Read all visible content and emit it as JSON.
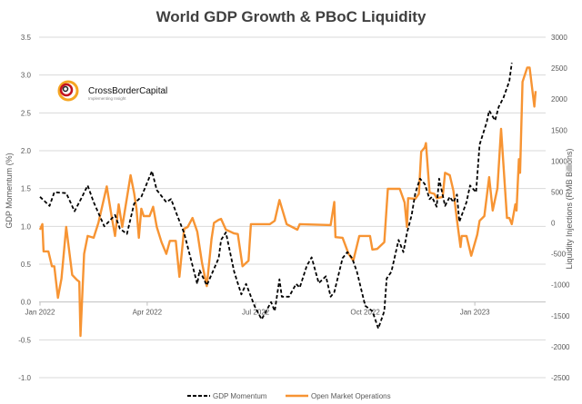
{
  "chart_data": {
    "type": "line",
    "title": "World GDP Growth & PBoC Liquidity",
    "ylabel": "GDP Momentum (%)",
    "y2label": "Liquidity Injections (RMB Billions)",
    "ylim": [
      -1.0,
      3.5
    ],
    "y2lim": [
      -2500,
      3000
    ],
    "yticks": [
      "3.5",
      "3.0",
      "2.5",
      "2.0",
      "1.5",
      "1.0",
      "0.5",
      "0.0",
      "-0.5",
      "-1.0"
    ],
    "y2ticks": [
      "3000",
      "2500",
      "2000",
      "1500",
      "1000",
      "500",
      "0",
      "-500",
      "-1000",
      "-1500",
      "-2000",
      "-2500"
    ],
    "xticks": [
      {
        "date": "2022-01-01",
        "label": "Jan 2022"
      },
      {
        "date": "2022-04-01",
        "label": "Apr 2022"
      },
      {
        "date": "2022-07-01",
        "label": "Jul 2022"
      },
      {
        "date": "2022-10-01",
        "label": "Oct 2022"
      },
      {
        "date": "2023-01-01",
        "label": "Jan 2023"
      }
    ],
    "grid": true,
    "legend": "bottom",
    "logo": {
      "name": "CrossBorderCapital",
      "tagline": "Implementing Insight"
    },
    "series": [
      {
        "name": "GDP Momentum",
        "axis": "left",
        "color": "#000000",
        "style": "dashed",
        "x": [
          "2022-01-01",
          "2022-01-09",
          "2022-01-13",
          "2022-01-23",
          "2022-01-30",
          "2022-02-05",
          "2022-02-10",
          "2022-02-15",
          "2022-02-24",
          "2022-03-05",
          "2022-03-09",
          "2022-03-15",
          "2022-03-21",
          "2022-03-27",
          "2022-04-05",
          "2022-04-09",
          "2022-04-17",
          "2022-04-21",
          "2022-04-26",
          "2022-05-02",
          "2022-05-13",
          "2022-05-15",
          "2022-05-21",
          "2022-05-31",
          "2022-06-02",
          "2022-06-06",
          "2022-06-13",
          "2022-06-19",
          "2022-06-23",
          "2022-06-30",
          "2022-07-06",
          "2022-07-14",
          "2022-07-17",
          "2022-07-21",
          "2022-07-23",
          "2022-07-29",
          "2022-08-04",
          "2022-08-07",
          "2022-08-13",
          "2022-08-17",
          "2022-08-23",
          "2022-08-29",
          "2022-09-02",
          "2022-09-05",
          "2022-09-12",
          "2022-09-16",
          "2022-09-20",
          "2022-09-24",
          "2022-10-01",
          "2022-10-07",
          "2022-10-12",
          "2022-10-17",
          "2022-10-19",
          "2022-10-23",
          "2022-10-29",
          "2022-11-02",
          "2022-11-05",
          "2022-11-09",
          "2022-11-12",
          "2022-11-16",
          "2022-11-20",
          "2022-11-24",
          "2022-11-26",
          "2022-11-30",
          "2022-12-02",
          "2022-12-07",
          "2022-12-11",
          "2022-12-14",
          "2022-12-17",
          "2022-12-19",
          "2022-12-25",
          "2022-12-28",
          "2023-01-02",
          "2023-01-05",
          "2023-01-11",
          "2023-01-13",
          "2023-01-18",
          "2023-01-21",
          "2023-01-25",
          "2023-01-30",
          "2023-02-01"
        ],
        "values": [
          1.39,
          1.27,
          1.45,
          1.44,
          1.2,
          1.38,
          1.54,
          1.32,
          1.0,
          1.15,
          0.97,
          0.9,
          1.3,
          1.39,
          1.73,
          1.48,
          1.32,
          1.36,
          1.15,
          0.91,
          0.24,
          0.42,
          0.22,
          0.58,
          0.82,
          0.92,
          0.4,
          0.1,
          0.24,
          -0.05,
          -0.23,
          0.0,
          -0.12,
          0.3,
          0.07,
          0.07,
          0.24,
          0.19,
          0.48,
          0.59,
          0.25,
          0.34,
          0.07,
          0.13,
          0.58,
          0.66,
          0.58,
          0.4,
          -0.05,
          -0.12,
          -0.35,
          -0.12,
          0.31,
          0.4,
          0.82,
          0.66,
          0.91,
          1.15,
          1.44,
          1.63,
          1.56,
          1.36,
          1.39,
          1.26,
          1.63,
          1.27,
          1.39,
          1.32,
          1.42,
          1.06,
          1.32,
          1.54,
          1.45,
          2.08,
          2.38,
          2.53,
          2.4,
          2.58,
          2.7,
          2.92,
          3.16
        ]
      },
      {
        "name": "Open Market Operations",
        "axis": "right",
        "color": "#f79433",
        "style": "solid",
        "x": [
          "2022-01-01",
          "2022-01-03",
          "2022-01-04",
          "2022-01-08",
          "2022-01-11",
          "2022-01-13",
          "2022-01-16",
          "2022-01-19",
          "2022-01-23",
          "2022-01-28",
          "2022-02-01",
          "2022-02-03",
          "2022-02-04",
          "2022-02-07",
          "2022-02-10",
          "2022-02-15",
          "2022-02-19",
          "2022-02-26",
          "2022-03-02",
          "2022-03-05",
          "2022-03-08",
          "2022-03-11",
          "2022-03-18",
          "2022-03-21",
          "2022-03-23",
          "2022-03-25",
          "2022-03-27",
          "2022-03-29",
          "2022-04-03",
          "2022-04-06",
          "2022-04-09",
          "2022-04-13",
          "2022-04-17",
          "2022-04-20",
          "2022-04-25",
          "2022-04-28",
          "2022-05-02",
          "2022-05-05",
          "2022-05-09",
          "2022-05-13",
          "2022-05-17",
          "2022-05-21",
          "2022-05-25",
          "2022-05-27",
          "2022-05-31",
          "2022-06-02",
          "2022-06-06",
          "2022-06-13",
          "2022-06-16",
          "2022-06-20",
          "2022-06-25",
          "2022-06-27",
          "2022-07-13",
          "2022-07-17",
          "2022-07-21",
          "2022-07-27",
          "2022-08-05",
          "2022-08-07",
          "2022-09-02",
          "2022-09-05",
          "2022-09-06",
          "2022-09-12",
          "2022-09-17",
          "2022-09-21",
          "2022-09-26",
          "2022-10-05",
          "2022-10-07",
          "2022-10-11",
          "2022-10-17",
          "2022-10-20",
          "2022-10-30",
          "2022-11-03",
          "2022-11-05",
          "2022-11-06",
          "2022-11-12",
          "2022-11-15",
          "2022-11-17",
          "2022-11-20",
          "2022-11-21",
          "2022-11-24",
          "2022-11-28",
          "2022-11-30",
          "2022-12-05",
          "2022-12-07",
          "2022-12-11",
          "2022-12-14",
          "2022-12-17",
          "2022-12-20",
          "2022-12-21",
          "2022-12-25",
          "2022-12-29",
          "2023-01-03",
          "2023-01-05",
          "2023-01-09",
          "2023-01-13",
          "2023-01-16",
          "2023-01-20",
          "2023-01-23",
          "2023-01-28",
          "2023-01-30",
          "2023-02-01",
          "2023-02-04",
          "2023-02-05",
          "2023-02-07",
          "2023-02-08",
          "2023-02-10",
          "2023-02-14",
          "2023-02-16",
          "2023-02-20",
          "2023-02-21"
        ],
        "values": [
          -110,
          -20,
          -460,
          -460,
          -700,
          -700,
          -1210,
          -900,
          -65,
          -840,
          -920,
          -950,
          -1825,
          -500,
          -210,
          -240,
          0,
          590,
          120,
          -210,
          300,
          -65,
          770,
          480,
          230,
          -240,
          230,
          110,
          110,
          260,
          -65,
          -310,
          -500,
          -290,
          -290,
          -870,
          -95,
          -65,
          80,
          -140,
          -650,
          -1020,
          -260,
          0,
          50,
          65,
          -110,
          -170,
          -180,
          -700,
          -610,
          -20,
          -20,
          35,
          370,
          -20,
          -110,
          -20,
          -35,
          340,
          -230,
          -240,
          -500,
          -610,
          -210,
          -210,
          -430,
          -420,
          -310,
          550,
          550,
          330,
          -65,
          400,
          390,
          470,
          1150,
          1220,
          1290,
          490,
          470,
          400,
          420,
          810,
          770,
          520,
          50,
          -390,
          -210,
          -210,
          -530,
          -190,
          35,
          110,
          740,
          200,
          560,
          1520,
          80,
          80,
          -20,
          300,
          200,
          1030,
          810,
          2280,
          2510,
          2510,
          1880,
          2130
        ]
      }
    ]
  }
}
